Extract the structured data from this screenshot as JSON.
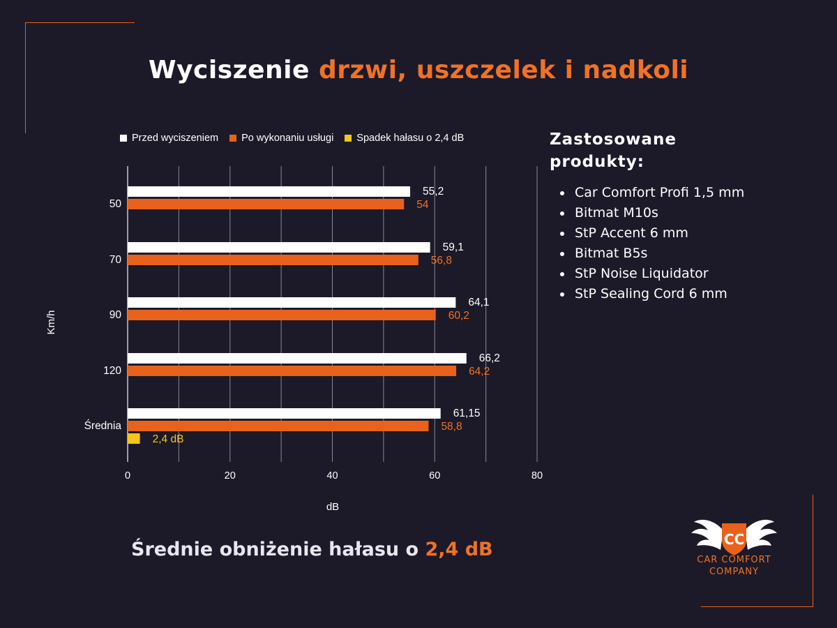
{
  "title": {
    "main": "Wyciszenie",
    "highlight": "drzwi, uszczelek i nadkoli"
  },
  "colors": {
    "background": "#1c1a28",
    "accent": "#f07226",
    "before": "#ffffff",
    "after": "#e8621c",
    "drop": "#f5c518"
  },
  "legend": [
    {
      "label": "Przed wyciszeniem",
      "color": "#ffffff"
    },
    {
      "label": "Po wykonaniu usługi",
      "color": "#e8621c"
    },
    {
      "label": "Spadek hałasu o 2,4 dB",
      "color": "#f5c518"
    }
  ],
  "chart_data": {
    "type": "bar",
    "orientation": "horizontal",
    "categories": [
      "50",
      "70",
      "90",
      "120",
      "Średnia"
    ],
    "series": [
      {
        "name": "Przed wyciszeniem",
        "values": [
          55.2,
          59.1,
          64.1,
          66.2,
          61.15
        ],
        "labels": [
          "55,2",
          "59,1",
          "64,1",
          "66,2",
          "61,15"
        ]
      },
      {
        "name": "Po wykonaniu usługi",
        "values": [
          54,
          56.8,
          60.2,
          64.2,
          58.8
        ],
        "labels": [
          "54",
          "56,8",
          "60,2",
          "64,2",
          "58,8"
        ]
      },
      {
        "name": "Spadek hałasu o 2,4 dB",
        "values": [
          null,
          null,
          null,
          null,
          2.4
        ],
        "labels": [
          "",
          "",
          "",
          "",
          "2,4 dB"
        ]
      }
    ],
    "xlabel": "dB",
    "ylabel": "Km/h",
    "xlim": [
      0,
      80
    ],
    "xticks": [
      "0",
      "20",
      "40",
      "60",
      "80"
    ],
    "grid": true,
    "legend_position": "top"
  },
  "products": {
    "title": "Zastosowane produkty:",
    "items": [
      "Car Comfort Profi 1,5 mm",
      "Bitmat M10s",
      "StP Accent 6 mm",
      "Bitmat B5s",
      "StP Noise Liquidator",
      "StP Sealing Cord 6 mm"
    ]
  },
  "summary": {
    "text": "Średnie obniżenie hałasu o",
    "value": "2,4 dB"
  },
  "logo": {
    "text_line1": "CAR COMFORT",
    "text_line2": "COMPANY",
    "monogram": "CC"
  }
}
